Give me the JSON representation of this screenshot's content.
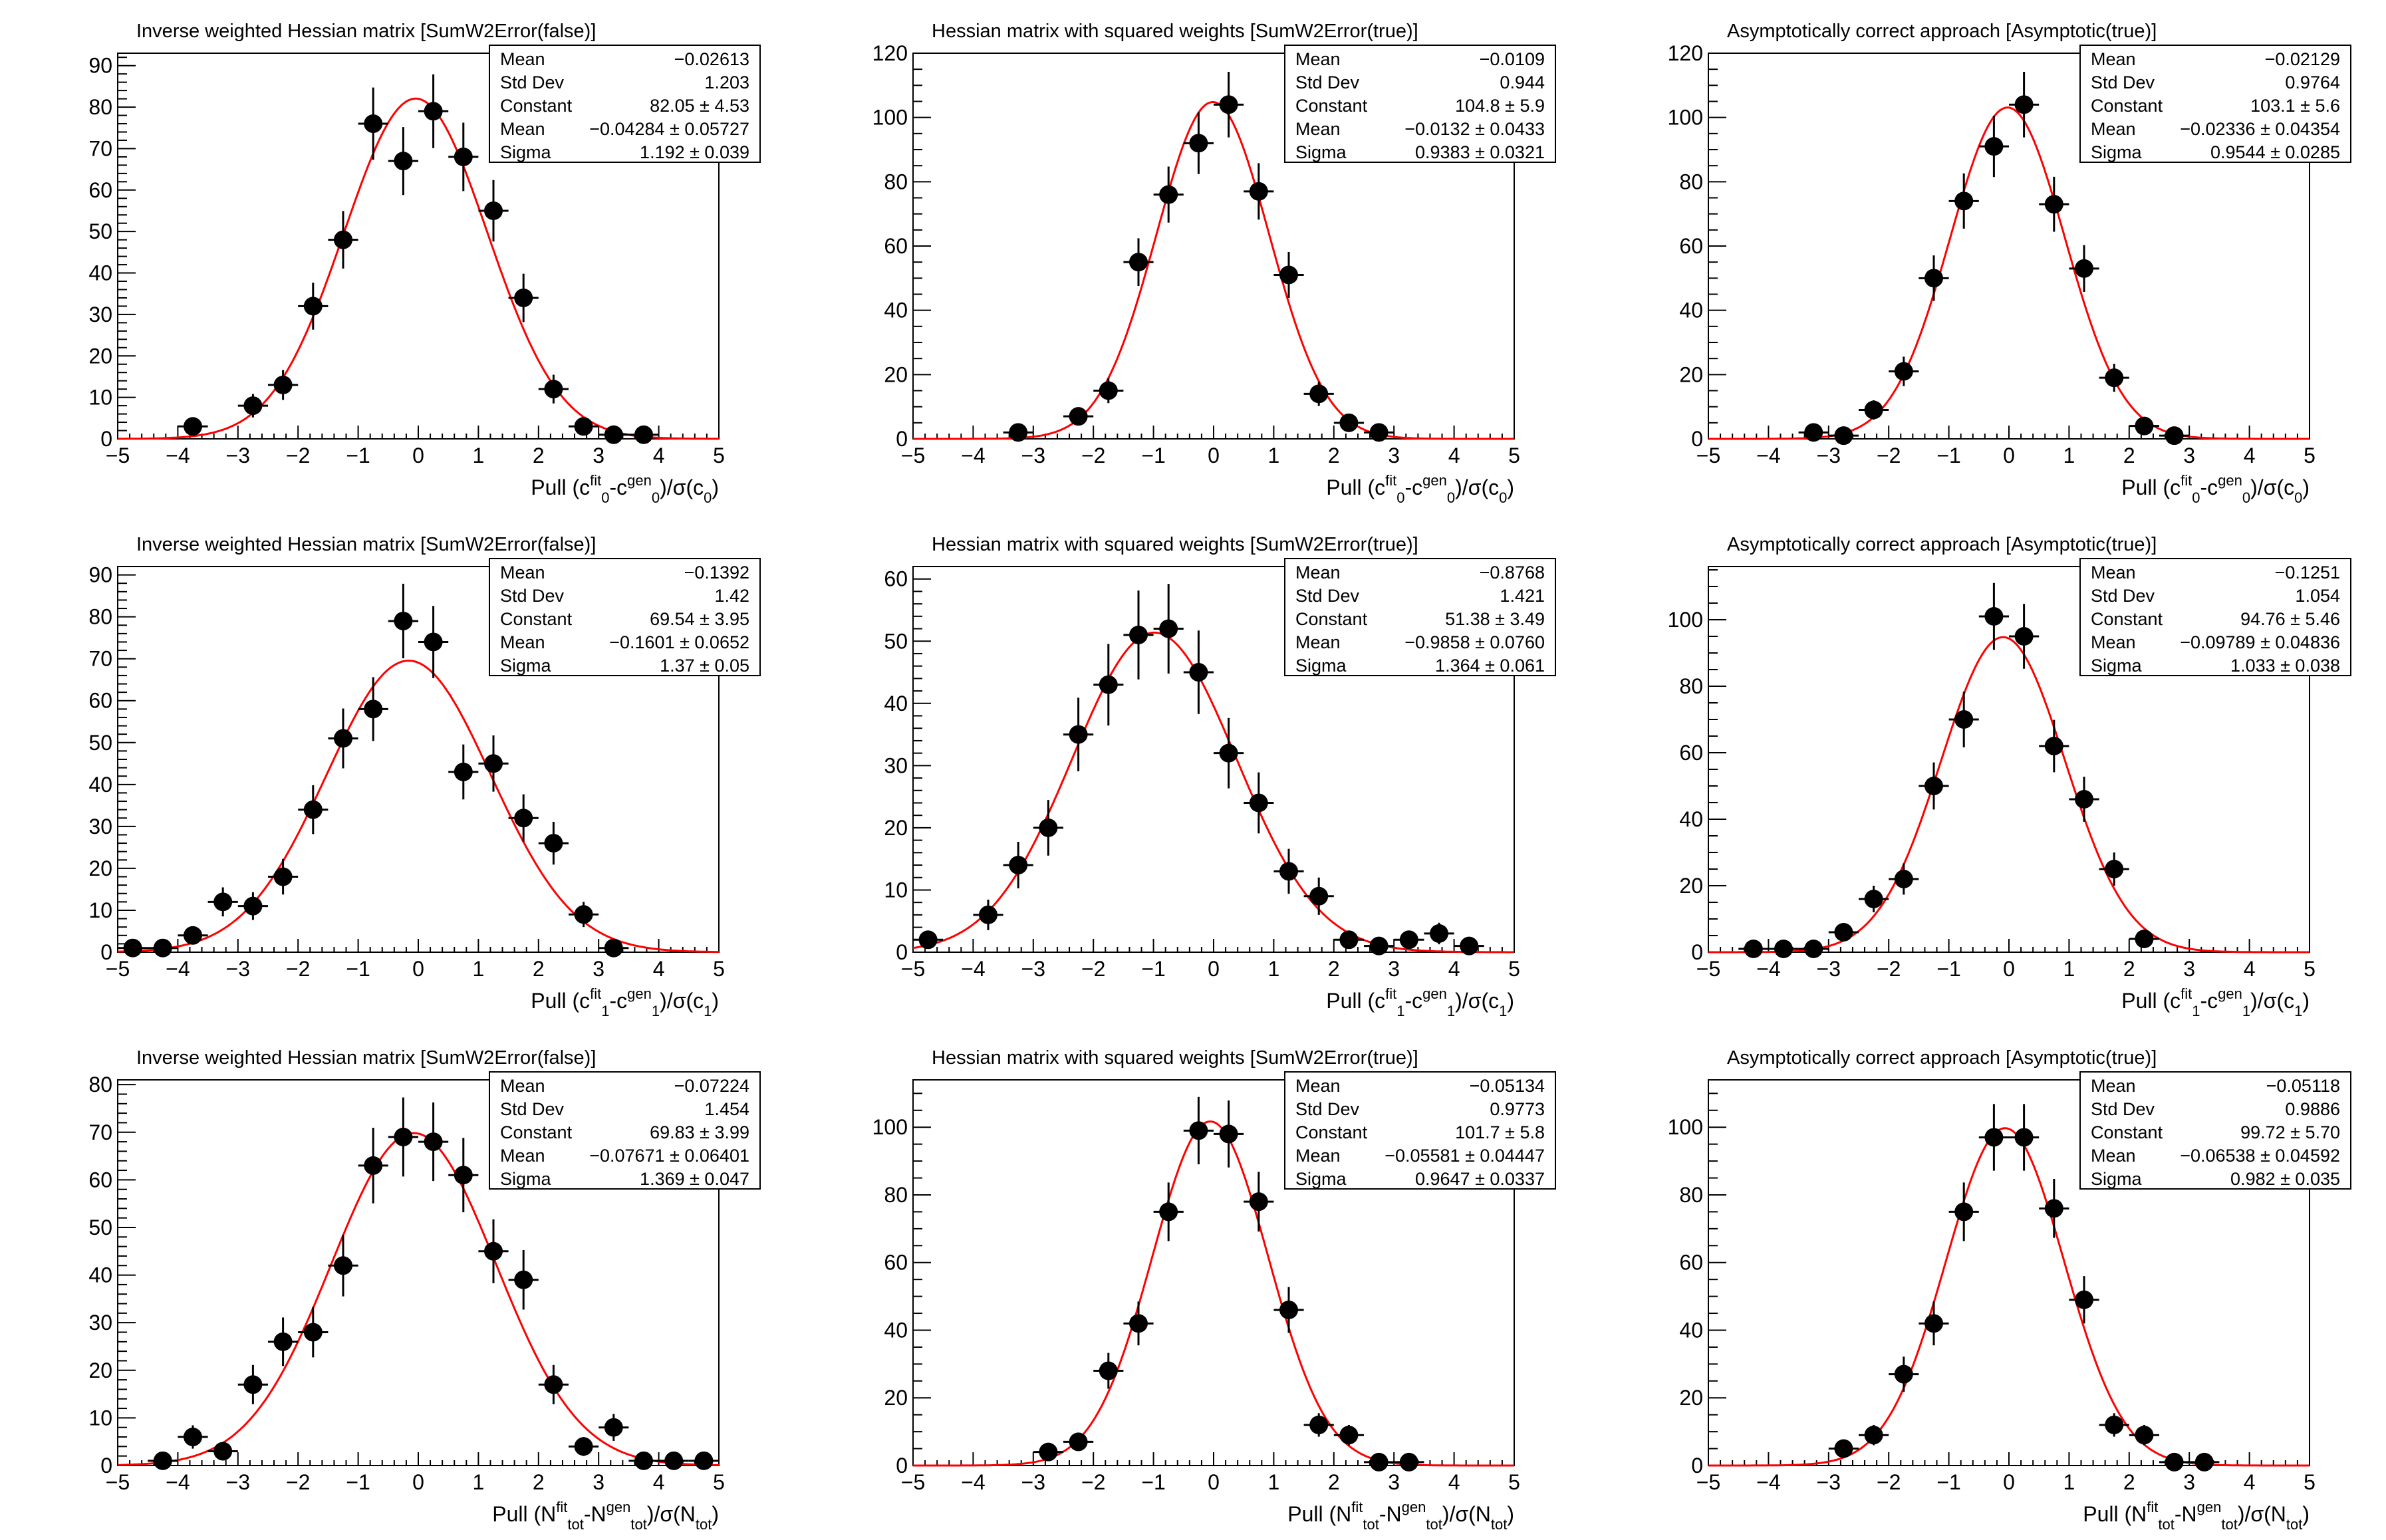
{
  "colors": {
    "fit": "#ff0000",
    "points": "#000000",
    "frame": "#000000"
  },
  "chart_data": [
    {
      "type": "scatter",
      "title": "Inverse weighted Hessian matrix [SumW2Error(false)]",
      "xlabel": [
        {
          "t": "Pull (c"
        },
        {
          "t": "fit",
          "s": "sup"
        },
        {
          "t": "0",
          "s": "sub"
        },
        {
          "t": "-c"
        },
        {
          "t": "gen",
          "s": "sup"
        },
        {
          "t": "0",
          "s": "sub"
        },
        {
          "t": ")/σ(c"
        },
        {
          "t": "0",
          "s": "sub"
        },
        {
          "t": ")"
        }
      ],
      "xlim": [
        -5,
        5
      ],
      "ylim": [
        0,
        93
      ],
      "ystep": 10,
      "xticks": [
        "−5",
        "−4",
        "−3",
        "−2",
        "−1",
        "0",
        "1",
        "2",
        "3",
        "4",
        "5"
      ],
      "stats": [
        {
          "label": "Mean",
          "value": "−0.02613"
        },
        {
          "label": "Std Dev",
          "value": "1.203"
        },
        {
          "label": "Constant",
          "value": "82.05 ± 4.53"
        },
        {
          "label": "Mean",
          "value": "−0.04284 ± 0.05727"
        },
        {
          "label": "Sigma",
          "value": "1.192 ± 0.039"
        }
      ],
      "fit": {
        "constant": 82.05,
        "mean": -0.04284,
        "sigma": 1.192
      },
      "x": [
        -3.75,
        -2.75,
        -2.25,
        -1.75,
        -1.25,
        -0.75,
        -0.25,
        0.25,
        0.75,
        1.25,
        1.75,
        2.25,
        2.75,
        3.25,
        3.75
      ],
      "y": [
        3,
        8,
        13,
        32,
        48,
        76,
        67,
        79,
        68,
        55,
        34,
        12,
        3,
        1,
        1
      ]
    },
    {
      "type": "scatter",
      "title": "Hessian matrix with squared weights [SumW2Error(true)]",
      "xlabel": [
        {
          "t": "Pull (c"
        },
        {
          "t": "fit",
          "s": "sup"
        },
        {
          "t": "0",
          "s": "sub"
        },
        {
          "t": "-c"
        },
        {
          "t": "gen",
          "s": "sup"
        },
        {
          "t": "0",
          "s": "sub"
        },
        {
          "t": ")/σ(c"
        },
        {
          "t": "0",
          "s": "sub"
        },
        {
          "t": ")"
        }
      ],
      "xlim": [
        -5,
        5
      ],
      "ylim": [
        0,
        120
      ],
      "ystep": 20,
      "xticks": [
        "−5",
        "−4",
        "−3",
        "−2",
        "−1",
        "0",
        "1",
        "2",
        "3",
        "4",
        "5"
      ],
      "stats": [
        {
          "label": "Mean",
          "value": "−0.0109"
        },
        {
          "label": "Std Dev",
          "value": "0.944"
        },
        {
          "label": "Constant",
          "value": "104.8 ± 5.9"
        },
        {
          "label": "Mean",
          "value": "−0.0132 ± 0.0433"
        },
        {
          "label": "Sigma",
          "value": "0.9383 ± 0.0321"
        }
      ],
      "fit": {
        "constant": 104.8,
        "mean": -0.0132,
        "sigma": 0.9383
      },
      "x": [
        -3.25,
        -2.25,
        -1.75,
        -1.25,
        -0.75,
        -0.25,
        0.25,
        0.75,
        1.25,
        1.75,
        2.25,
        2.75
      ],
      "y": [
        2,
        7,
        15,
        55,
        76,
        92,
        104,
        77,
        51,
        14,
        5,
        2
      ]
    },
    {
      "type": "scatter",
      "title": "Asymptotically correct approach [Asymptotic(true)]",
      "xlabel": [
        {
          "t": "Pull (c"
        },
        {
          "t": "fit",
          "s": "sup"
        },
        {
          "t": "0",
          "s": "sub"
        },
        {
          "t": "-c"
        },
        {
          "t": "gen",
          "s": "sup"
        },
        {
          "t": "0",
          "s": "sub"
        },
        {
          "t": ")/σ(c"
        },
        {
          "t": "0",
          "s": "sub"
        },
        {
          "t": ")"
        }
      ],
      "xlim": [
        -5,
        5
      ],
      "ylim": [
        0,
        120
      ],
      "ystep": 20,
      "xticks": [
        "−5",
        "−4",
        "−3",
        "−2",
        "−1",
        "0",
        "1",
        "2",
        "3",
        "4",
        "5"
      ],
      "stats": [
        {
          "label": "Mean",
          "value": "−0.02129"
        },
        {
          "label": "Std Dev",
          "value": "0.9764"
        },
        {
          "label": "Constant",
          "value": "103.1 ± 5.6"
        },
        {
          "label": "Mean",
          "value": "−0.02336 ± 0.04354"
        },
        {
          "label": "Sigma",
          "value": "0.9544 ± 0.0285"
        }
      ],
      "fit": {
        "constant": 103.1,
        "mean": -0.02336,
        "sigma": 0.9544
      },
      "x": [
        -3.25,
        -2.75,
        -2.25,
        -1.75,
        -1.25,
        -0.75,
        -0.25,
        0.25,
        0.75,
        1.25,
        1.75,
        2.25,
        2.75
      ],
      "y": [
        2,
        1,
        9,
        21,
        50,
        74,
        91,
        104,
        73,
        53,
        19,
        4,
        1
      ]
    },
    {
      "type": "scatter",
      "title": "Inverse weighted Hessian matrix [SumW2Error(false)]",
      "xlabel": [
        {
          "t": "Pull (c"
        },
        {
          "t": "fit",
          "s": "sup"
        },
        {
          "t": "1",
          "s": "sub"
        },
        {
          "t": "-c"
        },
        {
          "t": "gen",
          "s": "sup"
        },
        {
          "t": "1",
          "s": "sub"
        },
        {
          "t": ")/σ(c"
        },
        {
          "t": "1",
          "s": "sub"
        },
        {
          "t": ")"
        }
      ],
      "xlim": [
        -5,
        5
      ],
      "ylim": [
        0,
        92
      ],
      "ystep": 10,
      "xticks": [
        "−5",
        "−4",
        "−3",
        "−2",
        "−1",
        "0",
        "1",
        "2",
        "3",
        "4",
        "5"
      ],
      "stats": [
        {
          "label": "Mean",
          "value": "−0.1392"
        },
        {
          "label": "Std Dev",
          "value": "1.42"
        },
        {
          "label": "Constant",
          "value": "69.54 ± 3.95"
        },
        {
          "label": "Mean",
          "value": "−0.1601 ± 0.0652"
        },
        {
          "label": "Sigma",
          "value": "1.37 ± 0.05"
        }
      ],
      "fit": {
        "constant": 69.54,
        "mean": -0.1601,
        "sigma": 1.37
      },
      "x": [
        -4.75,
        -4.25,
        -3.75,
        -3.25,
        -2.75,
        -2.25,
        -1.75,
        -1.25,
        -0.75,
        -0.25,
        0.25,
        0.75,
        1.25,
        1.75,
        2.25,
        2.75,
        3.25
      ],
      "y": [
        1,
        1,
        4,
        12,
        11,
        18,
        34,
        51,
        58,
        79,
        74,
        43,
        45,
        32,
        26,
        9,
        1
      ]
    },
    {
      "type": "scatter",
      "title": "Hessian matrix with squared weights [SumW2Error(true)]",
      "xlabel": [
        {
          "t": "Pull (c"
        },
        {
          "t": "fit",
          "s": "sup"
        },
        {
          "t": "1",
          "s": "sub"
        },
        {
          "t": "-c"
        },
        {
          "t": "gen",
          "s": "sup"
        },
        {
          "t": "1",
          "s": "sub"
        },
        {
          "t": ")/σ(c"
        },
        {
          "t": "1",
          "s": "sub"
        },
        {
          "t": ")"
        }
      ],
      "xlim": [
        -5,
        5
      ],
      "ylim": [
        0,
        62
      ],
      "ystep": 10,
      "xticks": [
        "−5",
        "−4",
        "−3",
        "−2",
        "−1",
        "0",
        "1",
        "2",
        "3",
        "4",
        "5"
      ],
      "stats": [
        {
          "label": "Mean",
          "value": "−0.8768"
        },
        {
          "label": "Std Dev",
          "value": "1.421"
        },
        {
          "label": "Constant",
          "value": "51.38 ± 3.49"
        },
        {
          "label": "Mean",
          "value": "−0.9858 ± 0.0760"
        },
        {
          "label": "Sigma",
          "value": "1.364 ± 0.061"
        }
      ],
      "fit": {
        "constant": 51.38,
        "mean": -0.9858,
        "sigma": 1.364
      },
      "x": [
        -4.75,
        -3.75,
        -3.25,
        -2.75,
        -2.25,
        -1.75,
        -1.25,
        -0.75,
        -0.25,
        0.25,
        0.75,
        1.25,
        1.75,
        2.25,
        2.75,
        3.25,
        3.75,
        4.25
      ],
      "y": [
        2,
        6,
        14,
        20,
        35,
        43,
        51,
        52,
        45,
        32,
        24,
        13,
        9,
        2,
        1,
        2,
        3,
        1
      ]
    },
    {
      "type": "scatter",
      "title": "Asymptotically correct approach [Asymptotic(true)]",
      "xlabel": [
        {
          "t": "Pull (c"
        },
        {
          "t": "fit",
          "s": "sup"
        },
        {
          "t": "1",
          "s": "sub"
        },
        {
          "t": "-c"
        },
        {
          "t": "gen",
          "s": "sup"
        },
        {
          "t": "1",
          "s": "sub"
        },
        {
          "t": ")/σ(c"
        },
        {
          "t": "1",
          "s": "sub"
        },
        {
          "t": ")"
        }
      ],
      "xlim": [
        -5,
        5
      ],
      "ylim": [
        0,
        116
      ],
      "ystep": 20,
      "xticks": [
        "−5",
        "−4",
        "−3",
        "−2",
        "−1",
        "0",
        "1",
        "2",
        "3",
        "4",
        "5"
      ],
      "stats": [
        {
          "label": "Mean",
          "value": "−0.1251"
        },
        {
          "label": "Std Dev",
          "value": "1.054"
        },
        {
          "label": "Constant",
          "value": "94.76 ± 5.46"
        },
        {
          "label": "Mean",
          "value": "−0.09789 ± 0.04836"
        },
        {
          "label": "Sigma",
          "value": "1.033 ± 0.038"
        }
      ],
      "fit": {
        "constant": 94.76,
        "mean": -0.09789,
        "sigma": 1.033
      },
      "x": [
        -4.25,
        -3.75,
        -3.25,
        -2.75,
        -2.25,
        -1.75,
        -1.25,
        -0.75,
        -0.25,
        0.25,
        0.75,
        1.25,
        1.75,
        2.25
      ],
      "y": [
        1,
        1,
        1,
        6,
        16,
        22,
        50,
        70,
        101,
        95,
        62,
        46,
        25,
        4
      ]
    },
    {
      "type": "scatter",
      "title": "Inverse weighted Hessian matrix [SumW2Error(false)]",
      "xlabel": [
        {
          "t": "Pull (N"
        },
        {
          "t": "fit",
          "s": "sup"
        },
        {
          "t": "tot",
          "s": "sub"
        },
        {
          "t": "-N"
        },
        {
          "t": "gen",
          "s": "sup"
        },
        {
          "t": "tot",
          "s": "sub"
        },
        {
          "t": ")/σ(N"
        },
        {
          "t": "tot",
          "s": "sub"
        },
        {
          "t": ")"
        }
      ],
      "xlim": [
        -5,
        5
      ],
      "ylim": [
        0,
        81
      ],
      "ystep": 10,
      "xticks": [
        "−5",
        "−4",
        "−3",
        "−2",
        "−1",
        "0",
        "1",
        "2",
        "3",
        "4",
        "5"
      ],
      "stats": [
        {
          "label": "Mean",
          "value": "−0.07224"
        },
        {
          "label": "Std Dev",
          "value": "1.454"
        },
        {
          "label": "Constant",
          "value": "69.83 ± 3.99"
        },
        {
          "label": "Mean",
          "value": "−0.07671 ± 0.06401"
        },
        {
          "label": "Sigma",
          "value": "1.369 ± 0.047"
        }
      ],
      "fit": {
        "constant": 69.83,
        "mean": -0.07671,
        "sigma": 1.369
      },
      "x": [
        -4.25,
        -3.75,
        -3.25,
        -2.75,
        -2.25,
        -1.75,
        -1.25,
        -0.75,
        -0.25,
        0.25,
        0.75,
        1.25,
        1.75,
        2.25,
        2.75,
        3.25,
        3.75,
        4.25,
        4.75
      ],
      "y": [
        1,
        6,
        3,
        17,
        26,
        28,
        42,
        63,
        69,
        68,
        61,
        45,
        39,
        17,
        4,
        8,
        1,
        1,
        1
      ]
    },
    {
      "type": "scatter",
      "title": "Hessian matrix with squared weights [SumW2Error(true)]",
      "xlabel": [
        {
          "t": "Pull (N"
        },
        {
          "t": "fit",
          "s": "sup"
        },
        {
          "t": "tot",
          "s": "sub"
        },
        {
          "t": "-N"
        },
        {
          "t": "gen",
          "s": "sup"
        },
        {
          "t": "tot",
          "s": "sub"
        },
        {
          "t": ")/σ(N"
        },
        {
          "t": "tot",
          "s": "sub"
        },
        {
          "t": ")"
        }
      ],
      "xlim": [
        -5,
        5
      ],
      "ylim": [
        0,
        114
      ],
      "ystep": 20,
      "xticks": [
        "−5",
        "−4",
        "−3",
        "−2",
        "−1",
        "0",
        "1",
        "2",
        "3",
        "4",
        "5"
      ],
      "stats": [
        {
          "label": "Mean",
          "value": "−0.05134"
        },
        {
          "label": "Std Dev",
          "value": "0.9773"
        },
        {
          "label": "Constant",
          "value": "101.7 ± 5.8"
        },
        {
          "label": "Mean",
          "value": "−0.05581 ± 0.04447"
        },
        {
          "label": "Sigma",
          "value": "0.9647 ± 0.0337"
        }
      ],
      "fit": {
        "constant": 101.7,
        "mean": -0.05581,
        "sigma": 0.9647
      },
      "x": [
        -2.75,
        -2.25,
        -1.75,
        -1.25,
        -0.75,
        -0.25,
        0.25,
        0.75,
        1.25,
        1.75,
        2.25,
        2.75,
        3.25
      ],
      "y": [
        4,
        7,
        28,
        42,
        75,
        99,
        98,
        78,
        46,
        12,
        9,
        1,
        1
      ]
    },
    {
      "type": "scatter",
      "title": "Asymptotically correct approach [Asymptotic(true)]",
      "xlabel": [
        {
          "t": "Pull (N"
        },
        {
          "t": "fit",
          "s": "sup"
        },
        {
          "t": "tot",
          "s": "sub"
        },
        {
          "t": "-N"
        },
        {
          "t": "gen",
          "s": "sup"
        },
        {
          "t": "tot",
          "s": "sub"
        },
        {
          "t": ")/σ(N"
        },
        {
          "t": "tot",
          "s": "sub"
        },
        {
          "t": ")"
        }
      ],
      "xlim": [
        -5,
        5
      ],
      "ylim": [
        0,
        114
      ],
      "ystep": 20,
      "xticks": [
        "−5",
        "−4",
        "−3",
        "−2",
        "−1",
        "0",
        "1",
        "2",
        "3",
        "4",
        "5"
      ],
      "stats": [
        {
          "label": "Mean",
          "value": "−0.05118"
        },
        {
          "label": "Std Dev",
          "value": "0.9886"
        },
        {
          "label": "Constant",
          "value": "99.72 ± 5.70"
        },
        {
          "label": "Mean",
          "value": "−0.06538 ± 0.04592"
        },
        {
          "label": "Sigma",
          "value": "0.982 ± 0.035"
        }
      ],
      "fit": {
        "constant": 99.72,
        "mean": -0.06538,
        "sigma": 0.982
      },
      "x": [
        -2.75,
        -2.25,
        -1.75,
        -1.25,
        -0.75,
        -0.25,
        0.25,
        0.75,
        1.25,
        1.75,
        2.25,
        2.75,
        3.25
      ],
      "y": [
        5,
        9,
        27,
        42,
        75,
        97,
        97,
        76,
        49,
        12,
        9,
        1,
        1
      ]
    }
  ]
}
